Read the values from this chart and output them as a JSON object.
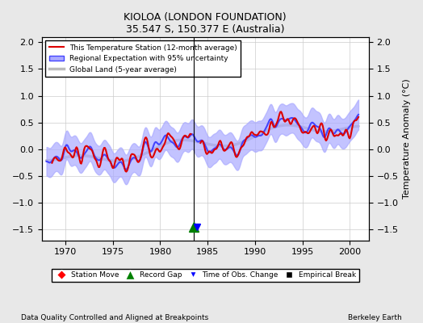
{
  "title": "KIOLOA (LONDON FOUNDATION)",
  "subtitle": "35.547 S, 150.377 E (Australia)",
  "ylabel": "Temperature Anomaly (°C)",
  "xlabel_left": "Data Quality Controlled and Aligned at Breakpoints",
  "xlabel_right": "Berkeley Earth",
  "ylim": [
    -1.7,
    2.1
  ],
  "xlim": [
    1967.5,
    2002.0
  ],
  "yticks": [
    -1.5,
    -1.0,
    -0.5,
    0.0,
    0.5,
    1.0,
    1.5,
    2.0
  ],
  "xticks": [
    1970,
    1975,
    1980,
    1985,
    1990,
    1995,
    2000
  ],
  "vline_x": 1983.5,
  "record_gap_x": 1983.5,
  "time_obs_change_x": 1983.9,
  "background_color": "#e8e8e8",
  "plot_bg_color": "#ffffff",
  "regional_color": "#4444ff",
  "regional_shade_color": "#aaaaff",
  "station_color": "#dd0000",
  "global_color": "#bbbbbb",
  "global_linewidth": 2.5,
  "station_linewidth": 1.5,
  "regional_linewidth": 1.5
}
